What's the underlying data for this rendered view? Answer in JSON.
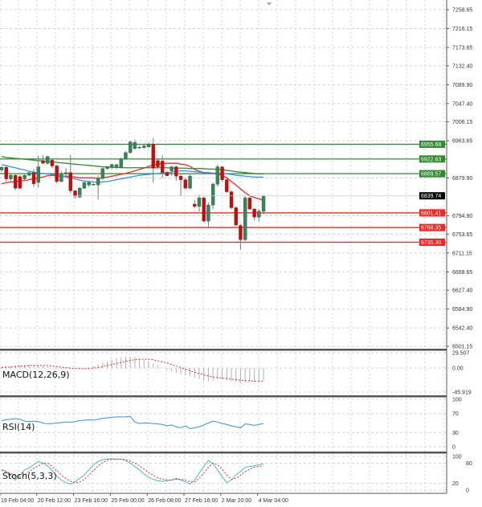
{
  "chart_data": {
    "type": "candlestick",
    "price_axis": {
      "ticks": [
        "7258.65",
        "7216.15",
        "7173.65",
        "7132.40",
        "7089.90",
        "7047.40",
        "7006.15",
        "6963.65",
        "6879.90",
        "6794.90",
        "6753.65",
        "6711.15",
        "6668.65",
        "6627.40",
        "6584.90",
        "6542.40",
        "6501.15"
      ],
      "ylim": [
        6501.15,
        7258.65
      ]
    },
    "time_axis": {
      "ticks": [
        "19 Feb 04:00",
        "20 Feb 12:00",
        "23 Feb 16:00",
        "25 Feb 00:00",
        "26 Feb 08:00",
        "27 Feb 16:00",
        "2 Mar 20:00",
        "4 Mar 04:00"
      ]
    },
    "grid": true,
    "current_price": {
      "label": "6839.74",
      "value": 6839.74,
      "color": "#000000"
    },
    "resistance_levels": {
      "color": "#2e8b2e",
      "values": [
        6955.68,
        6922.63,
        6889.57
      ],
      "labels": [
        "6955.68",
        "6922.63",
        "6889.57"
      ]
    },
    "support_levels": {
      "color": "#ff2020",
      "values": [
        6801.41,
        6768.35,
        6735.3
      ],
      "labels": [
        "6801.41",
        "6768.35",
        "6735.30"
      ]
    },
    "candles": [
      [
        6898,
        6906,
        6894,
        6904
      ],
      [
        6904,
        6908,
        6872,
        6878
      ],
      [
        6878,
        6888,
        6874,
        6886
      ],
      [
        6886,
        6890,
        6852,
        6857
      ],
      [
        6883,
        6886,
        6855,
        6857
      ],
      [
        6878,
        6888,
        6875,
        6886
      ],
      [
        6886,
        6893,
        6884,
        6892
      ],
      [
        6892,
        6900,
        6860,
        6867
      ],
      [
        6870,
        6930,
        6858,
        6905
      ],
      [
        6919,
        6931,
        6912,
        6913
      ],
      [
        6913,
        6930,
        6910,
        6928
      ],
      [
        6920,
        6924,
        6902,
        6907
      ],
      [
        6907,
        6910,
        6868,
        6872
      ],
      [
        6872,
        6895,
        6870,
        6889
      ],
      [
        6889,
        6902,
        6885,
        6892
      ],
      [
        6892,
        6932,
        6845,
        6851
      ],
      [
        6851,
        6853,
        6834,
        6839
      ],
      [
        6837,
        6860,
        6835,
        6857
      ],
      [
        6857,
        6870,
        6855,
        6870
      ],
      [
        6864,
        6872,
        6860,
        6870
      ],
      [
        6866,
        6868,
        6864,
        6866
      ],
      [
        6864,
        6886,
        6831,
        6879
      ],
      [
        6879,
        6903,
        6876,
        6901
      ],
      [
        6901,
        6905,
        6898,
        6904
      ],
      [
        6904,
        6912,
        6900,
        6910
      ],
      [
        6904,
        6911,
        6900,
        6910
      ],
      [
        6904,
        6926,
        6902,
        6923
      ],
      [
        6923,
        6940,
        6921,
        6937
      ],
      [
        6937,
        6963,
        6935,
        6961
      ],
      [
        6946,
        6966,
        6944,
        6960
      ],
      [
        6949,
        6952,
        6946,
        6949
      ],
      [
        6948,
        6956,
        6946,
        6952
      ],
      [
        6950,
        6960,
        6948,
        6955
      ],
      [
        6956,
        6970,
        6870,
        6902
      ],
      [
        6919,
        6922,
        6900,
        6905
      ],
      [
        6918,
        6930,
        6880,
        6892
      ],
      [
        6892,
        6896,
        6885,
        6885
      ],
      [
        6896,
        6907,
        6885,
        6905
      ],
      [
        6905,
        6908,
        6874,
        6884
      ],
      [
        6884,
        6890,
        6840,
        6876
      ],
      [
        6876,
        6880,
        6856,
        6857
      ],
      [
        6857,
        6888,
        6855,
        6884
      ],
      [
        6821,
        6830,
        6812,
        6816
      ],
      [
        6816,
        6842,
        6804,
        6835
      ],
      [
        6835,
        6838,
        6780,
        6783
      ],
      [
        6783,
        6825,
        6770,
        6819
      ],
      [
        6819,
        6870,
        6810,
        6866
      ],
      [
        6866,
        6910,
        6860,
        6905
      ],
      [
        6905,
        6906,
        6872,
        6876
      ],
      [
        6876,
        6880,
        6846,
        6849
      ],
      [
        6849,
        6852,
        6810,
        6813
      ],
      [
        6813,
        6816,
        6772,
        6774
      ],
      [
        6773,
        6776,
        6719,
        6741
      ],
      [
        6741,
        6840,
        6738,
        6835
      ],
      [
        6835,
        6838,
        6808,
        6810
      ],
      [
        6810,
        6812,
        6785,
        6792
      ],
      [
        6792,
        6810,
        6782,
        6805
      ],
      [
        6805,
        6842,
        6798,
        6839
      ]
    ],
    "moving_averages": [
      {
        "color": "#ff2020",
        "values": [
          6867,
          6869,
          6871,
          6872,
          6873,
          6874,
          6876,
          6878,
          6880,
          6882,
          6885,
          6886,
          6885,
          6884,
          6884,
          6884,
          6882,
          6880,
          6880,
          6880,
          6880,
          6879,
          6880,
          6882,
          6884,
          6886,
          6888,
          6890,
          6893,
          6896,
          6899,
          6902,
          6906,
          6909,
          6911,
          6913,
          6913,
          6913,
          6913,
          6911,
          6910,
          6906,
          6899,
          6895,
          6892,
          6891,
          6890,
          6889,
          6886,
          6880,
          6872,
          6864,
          6855,
          6847,
          6840,
          6836,
          6833,
          6830
        ]
      },
      {
        "color": "#2f8fff",
        "values": [
          6910,
          6908,
          6905,
          6903,
          6900,
          6898,
          6895,
          6893,
          6891,
          6890,
          6889,
          6888,
          6886,
          6885,
          6882,
          6880,
          6878,
          6875,
          6873,
          6872,
          6871,
          6870,
          6871,
          6872,
          6874,
          6876,
          6878,
          6880,
          6882,
          6884,
          6886,
          6887,
          6888,
          6889,
          6890,
          6891,
          6892,
          6893,
          6895,
          6896,
          6896,
          6895,
          6894,
          6893,
          6892,
          6892,
          6891,
          6891,
          6890,
          6889,
          6888,
          6886,
          6885,
          6884,
          6883,
          6882,
          6882,
          6882
        ]
      },
      {
        "color": "#2e8b2e",
        "values": [
          6928,
          6926,
          6925,
          6924,
          6923,
          6922,
          6921,
          6920,
          6919,
          6918,
          6917,
          6916,
          6915,
          6914,
          6913,
          6912,
          6911,
          6910,
          6909,
          6908,
          6907,
          6906,
          6905,
          6905,
          6904,
          6904,
          6903,
          6903,
          6903,
          6903,
          6903,
          6903,
          6903,
          6903,
          6903,
          6903,
          6903,
          6902,
          6902,
          6902,
          6902,
          6901,
          6901,
          6901,
          6901,
          6900,
          6900,
          6899,
          6898,
          6897,
          6896,
          6894,
          6893,
          6892,
          6891,
          6890,
          6889,
          6889
        ]
      }
    ],
    "indicators": [
      {
        "name": "MACD(12,26,9)",
        "ticks": [
          "29.507",
          "0.00",
          "-45.919"
        ],
        "ylim": [
          -45.919,
          29.507
        ],
        "histogram_color": "#b0b0b0",
        "signal_color": "#ff2020",
        "histogram": [
          2,
          3,
          4,
          5,
          6,
          6,
          7,
          6,
          5,
          4,
          3,
          1,
          -1,
          -2,
          -3,
          -2,
          -1,
          0,
          1,
          2,
          4,
          7,
          10,
          13,
          16,
          19,
          21,
          22,
          22,
          21,
          19,
          16,
          13,
          9,
          5,
          1,
          -3,
          -6,
          -9,
          -12,
          -14,
          -16,
          -18,
          -21,
          -24,
          -25,
          -24,
          -22,
          -22,
          -23,
          -25,
          -27,
          -29,
          -28,
          -27,
          -27,
          -26,
          -24
        ],
        "signal": [
          1,
          2,
          2,
          3,
          4,
          4,
          5,
          5,
          5,
          5,
          5,
          4,
          3,
          2,
          1,
          0,
          -1,
          -1,
          -1,
          -1,
          0,
          1,
          3,
          5,
          7,
          9,
          11,
          13,
          15,
          16,
          17,
          17,
          17,
          16,
          14,
          12,
          10,
          7,
          4,
          1,
          -2,
          -5,
          -8,
          -10,
          -13,
          -15,
          -17,
          -18,
          -19,
          -20,
          -21,
          -22,
          -23,
          -24,
          -24,
          -25,
          -25,
          -25
        ]
      },
      {
        "name": "RSI(14)",
        "ticks": [
          "100",
          "70",
          "30",
          "0"
        ],
        "ylim": [
          0,
          100
        ],
        "color": "#2f8fff",
        "values": [
          55,
          57,
          58,
          59,
          58,
          54,
          53,
          54,
          53,
          50,
          48,
          49,
          50,
          51,
          52,
          52,
          53,
          55,
          56,
          57,
          56,
          58,
          60,
          61,
          62,
          63,
          63,
          63,
          64,
          52,
          49,
          50,
          50,
          49,
          48,
          47,
          44,
          46,
          42,
          40,
          44,
          38,
          40,
          42,
          46,
          50,
          54,
          52,
          49,
          47,
          44,
          42,
          40,
          48,
          47,
          45,
          47,
          49
        ],
        "color_line": "#2f8fff"
      },
      {
        "name": "Stoch(5,3,3)",
        "ticks": [
          "100",
          "80",
          "20",
          "0"
        ],
        "ylim": [
          0,
          100
        ],
        "main_color": "#40c0b0",
        "signal_color": "#ff2020",
        "main": [
          62,
          55,
          42,
          30,
          45,
          60,
          66,
          75,
          85,
          80,
          72,
          58,
          42,
          30,
          22,
          18,
          25,
          35,
          45,
          60,
          75,
          85,
          90,
          92,
          93,
          91,
          92,
          88,
          80,
          70,
          60,
          48,
          38,
          32,
          28,
          26,
          28,
          30,
          35,
          30,
          25,
          18,
          30,
          50,
          70,
          88,
          78,
          60,
          40,
          22,
          30,
          45,
          55,
          68,
          70,
          72,
          75,
          78
        ],
        "signal": [
          58,
          55,
          50,
          42,
          38,
          45,
          55,
          65,
          72,
          80,
          80,
          70,
          58,
          45,
          34,
          26,
          22,
          24,
          32,
          45,
          58,
          72,
          82,
          88,
          91,
          92,
          92,
          90,
          86,
          80,
          72,
          62,
          52,
          44,
          36,
          32,
          30,
          30,
          32,
          32,
          30,
          25,
          24,
          35,
          50,
          68,
          80,
          75,
          62,
          45,
          32,
          35,
          44,
          55,
          62,
          68,
          70,
          72
        ]
      }
    ]
  }
}
